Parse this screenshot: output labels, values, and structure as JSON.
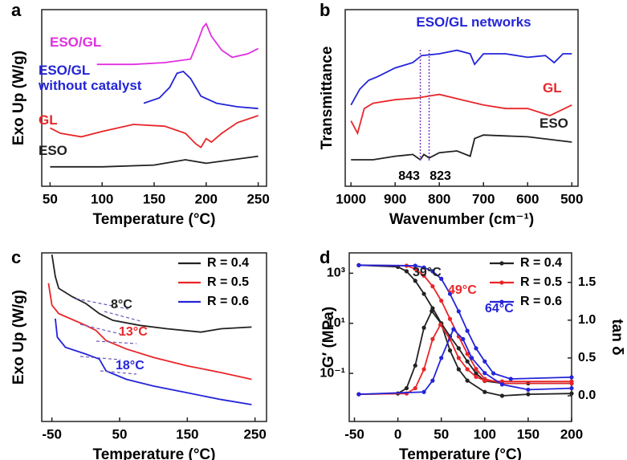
{
  "chart_data": [
    {
      "type": "line",
      "panel_label": "a",
      "xlabel": "Temperature (°C)",
      "ylabel": "Exo Up (W/g)",
      "xlim": [
        42,
        258
      ],
      "ylim": [
        0,
        10
      ],
      "xticks": [
        50,
        100,
        150,
        200,
        250
      ],
      "legend": "inline",
      "series": [
        {
          "name": "ESO/GL",
          "color": "#e030e0",
          "x": [
            95,
            130,
            160,
            185,
            192,
            197,
            200,
            205,
            215,
            225,
            240,
            250
          ],
          "values": [
            6.9,
            6.9,
            7.0,
            7.2,
            8.2,
            9.0,
            9.2,
            8.5,
            7.7,
            7.3,
            7.5,
            7.8
          ]
        },
        {
          "name": "ESO/GL\nwithout catalyst",
          "color": "#2424d8",
          "x": [
            140,
            155,
            165,
            172,
            178,
            185,
            195,
            210,
            230,
            250
          ],
          "values": [
            4.7,
            5.0,
            5.6,
            6.4,
            6.5,
            6.1,
            5.1,
            4.7,
            4.5,
            4.4
          ]
        },
        {
          "name": "GL",
          "color": "#e8262a",
          "x": [
            50,
            60,
            80,
            100,
            130,
            160,
            180,
            190,
            195,
            200,
            205,
            215,
            230,
            250
          ],
          "values": [
            3.3,
            3.0,
            2.8,
            3.1,
            3.5,
            3.4,
            3.0,
            2.4,
            2.2,
            2.7,
            2.5,
            3.0,
            3.6,
            4.0
          ]
        },
        {
          "name": "ESO",
          "color": "#222222",
          "x": [
            50,
            100,
            150,
            180,
            200,
            250
          ],
          "values": [
            1.1,
            1.1,
            1.2,
            1.5,
            1.3,
            1.7
          ]
        }
      ]
    },
    {
      "type": "line",
      "panel_label": "b",
      "xlabel": "Wavenumber (cm⁻¹)",
      "ylabel": "Transmittance",
      "xlim": [
        1013,
        486
      ],
      "ylim": [
        0,
        10
      ],
      "xticks": [
        1000,
        900,
        800,
        700,
        600,
        500
      ],
      "legend": "inline",
      "series": [
        {
          "name": "ESO/GL networks",
          "color": "#2424d8",
          "x": [
            1000,
            980,
            960,
            940,
            900,
            860,
            840,
            800,
            760,
            730,
            720,
            700,
            650,
            600,
            560,
            540,
            520,
            500
          ],
          "values": [
            4.6,
            5.5,
            6.0,
            6.2,
            6.7,
            7.0,
            7.4,
            7.5,
            7.7,
            7.5,
            6.9,
            7.5,
            7.5,
            7.3,
            7.4,
            7.0,
            7.5,
            7.5
          ]
        },
        {
          "name": "GL",
          "color": "#e8262a",
          "x": [
            1000,
            985,
            970,
            950,
            900,
            850,
            800,
            750,
            700,
            650,
            600,
            550,
            500
          ],
          "values": [
            3.7,
            3.0,
            4.4,
            4.7,
            4.9,
            5.0,
            5.2,
            4.9,
            4.6,
            4.4,
            4.4,
            4.0,
            4.6
          ]
        },
        {
          "name": "ESO",
          "color": "#222222",
          "x": [
            1000,
            950,
            900,
            860,
            843,
            835,
            823,
            800,
            760,
            730,
            720,
            700,
            600,
            500
          ],
          "values": [
            1.5,
            1.5,
            1.7,
            1.8,
            1.5,
            1.8,
            1.6,
            1.9,
            2.0,
            1.7,
            2.7,
            2.9,
            2.8,
            2.5
          ]
        }
      ],
      "annotations": [
        {
          "text": "843",
          "x": 843
        },
        {
          "text": "823",
          "x": 823
        }
      ]
    },
    {
      "type": "line",
      "panel_label": "c",
      "xlabel": "Temperature (°C)",
      "ylabel": "Exo Up (W/g)",
      "xlim": [
        -65,
        267
      ],
      "ylim": [
        0,
        10
      ],
      "xticks": [
        -50,
        50,
        150,
        250
      ],
      "legend": "upper right",
      "series": [
        {
          "name": "R = 0.4",
          "color": "#222222",
          "x": [
            -50,
            -45,
            -40,
            -20,
            0,
            20,
            40,
            80,
            120,
            170,
            200,
            245
          ],
          "values": [
            9.9,
            8.6,
            7.9,
            7.4,
            7.0,
            6.4,
            6.0,
            5.7,
            5.5,
            5.3,
            5.5,
            5.6
          ]
        },
        {
          "name": "R = 0.5",
          "color": "#e8262a",
          "x": [
            -55,
            -50,
            -40,
            0,
            15,
            30,
            60,
            100,
            150,
            200,
            245
          ],
          "values": [
            8.2,
            6.9,
            6.4,
            5.7,
            5.4,
            4.8,
            4.3,
            3.8,
            3.3,
            2.9,
            2.5
          ]
        },
        {
          "name": "R = 0.6",
          "color": "#2424d8",
          "x": [
            -45,
            -42,
            -30,
            0,
            20,
            30,
            60,
            100,
            150,
            200,
            245
          ],
          "values": [
            6.1,
            5.0,
            4.4,
            4.0,
            3.7,
            3.0,
            2.5,
            2.1,
            1.7,
            1.3,
            1.0
          ]
        }
      ],
      "annotations": [
        {
          "text": "8°C",
          "color": "#222222"
        },
        {
          "text": "13°C",
          "color": "#e8262a"
        },
        {
          "text": "18°C",
          "color": "#2424d8"
        }
      ]
    },
    {
      "type": "line",
      "panel_label": "d",
      "xlabel": "Temperature (°C)",
      "ylabel": "G′ (MPa)",
      "y2label": "tan δ",
      "xlim": [
        -56,
        200
      ],
      "ylim": [
        0.0012,
        6500
      ],
      "log_y": true,
      "y2lim": [
        -0.34,
        1.89
      ],
      "xticks": [
        -50,
        0,
        50,
        100,
        150,
        200
      ],
      "yticks": [
        {
          "value": 0.1,
          "label": "10⁻¹"
        },
        {
          "value": 10,
          "label": "10¹"
        },
        {
          "value": 1000,
          "label": "10³"
        }
      ],
      "y2ticks": [
        {
          "value": 0,
          "label": "0.0"
        },
        0.5,
        {
          "value": 1,
          "label": "1.0"
        },
        1.5
      ],
      "legend": "upper right",
      "markers": true,
      "series": [
        {
          "name": "R = 0.4",
          "color": "#222222",
          "x": [
            -45,
            0,
            10,
            20,
            30,
            40,
            50,
            60,
            70,
            80,
            90,
            100,
            120,
            150,
            200
          ],
          "values": [
            2100,
            1800,
            1200,
            500,
            150,
            40,
            10,
            3,
            1,
            0.3,
            0.1,
            0.05,
            0.04,
            0.04,
            0.04
          ]
        },
        {
          "name": "R = 0.5",
          "color": "#e8262a",
          "x": [
            -45,
            10,
            20,
            30,
            40,
            50,
            60,
            70,
            80,
            90,
            100,
            120,
            200
          ],
          "values": [
            2100,
            2000,
            1500,
            800,
            300,
            80,
            15,
            3,
            0.6,
            0.15,
            0.06,
            0.04,
            0.04
          ]
        },
        {
          "name": "R = 0.6",
          "color": "#2424d8",
          "x": [
            -45,
            20,
            30,
            40,
            50,
            60,
            70,
            80,
            90,
            100,
            110,
            130,
            200
          ],
          "values": [
            2100,
            2000,
            1700,
            1200,
            600,
            150,
            30,
            5,
            1,
            0.3,
            0.1,
            0.06,
            0.07
          ]
        },
        {
          "color": "#222222",
          "axis": "y2",
          "x": [
            -45,
            0,
            10,
            20,
            30,
            39,
            50,
            60,
            70,
            80,
            100,
            120,
            150,
            200
          ],
          "values": [
            0.02,
            0.03,
            0.1,
            0.4,
            0.9,
            1.12,
            0.95,
            0.6,
            0.35,
            0.2,
            0.05,
            0.0,
            0.02,
            0.03
          ]
        },
        {
          "color": "#e8262a",
          "axis": "y2",
          "x": [
            -45,
            10,
            20,
            30,
            40,
            49,
            60,
            70,
            80,
            90,
            100,
            120,
            200
          ],
          "values": [
            0.02,
            0.03,
            0.1,
            0.35,
            0.75,
            0.94,
            0.75,
            0.5,
            0.35,
            0.25,
            0.2,
            0.19,
            0.19
          ]
        },
        {
          "color": "#2424d8",
          "axis": "y2",
          "x": [
            -45,
            30,
            40,
            50,
            64,
            75,
            85,
            100,
            120,
            150,
            200
          ],
          "values": [
            0.02,
            0.05,
            0.2,
            0.5,
            0.88,
            0.75,
            0.5,
            0.3,
            0.15,
            0.08,
            0.1
          ]
        }
      ],
      "annotations": [
        {
          "text": "39°C",
          "color": "#222222"
        },
        {
          "text": "49°C",
          "color": "#e8262a"
        },
        {
          "text": "64°C",
          "color": "#2424d8"
        }
      ]
    }
  ]
}
